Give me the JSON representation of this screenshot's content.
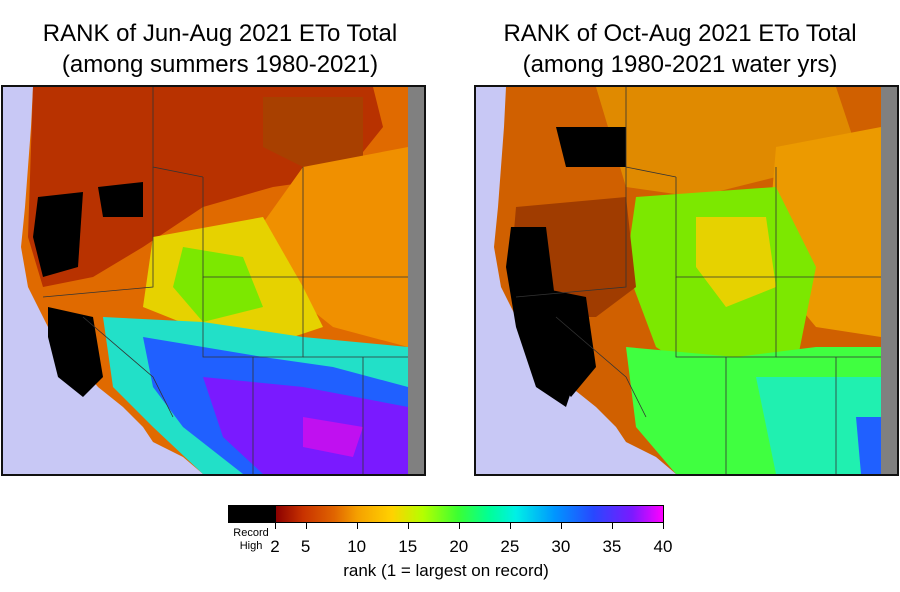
{
  "panels": [
    {
      "title_line1": "RANK of Jun-Aug 2021 ETo Total",
      "title_line2": "(among summers 1980-2021)"
    },
    {
      "title_line1": "RANK of Oct-Aug 2021 ETo Total",
      "title_line2": "(among 1980-2021 water yrs)"
    }
  ],
  "colorbar": {
    "record_label_line1": "Record",
    "record_label_line2": "High",
    "ticks": [
      "2",
      "5",
      "10",
      "15",
      "20",
      "25",
      "30",
      "35",
      "40"
    ],
    "axis_label": "rank (1 = largest on record)",
    "min": 1,
    "max": 40,
    "colors": {
      "record": "#000000",
      "low": "#8b0000",
      "mid": "#3cff32",
      "high": "#ff00ff"
    }
  },
  "map": {
    "ocean_color": "#c8c8f5",
    "nodata_color": "#808080",
    "border_color": "#333333"
  }
}
